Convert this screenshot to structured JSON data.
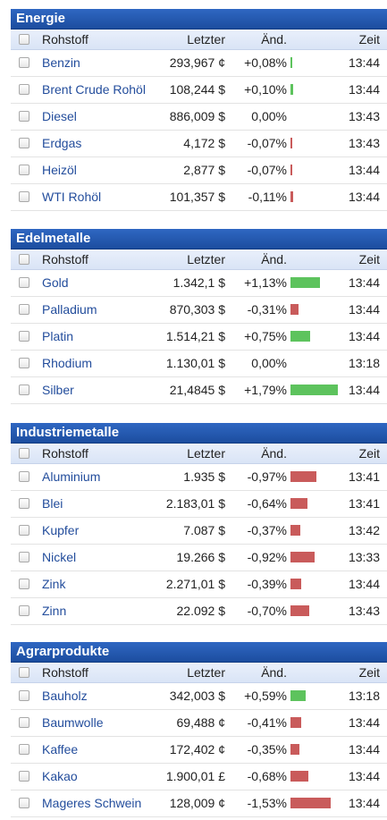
{
  "header_labels": {
    "name": "Rohstoff",
    "price": "Letzter",
    "change": "Änd.",
    "time": "Zeit"
  },
  "colors": {
    "header_blue": "#1c4d9f",
    "positive": "#5dc35d",
    "negative": "#c95b5b",
    "link": "#234d9c"
  },
  "sections": [
    {
      "title": "Energie",
      "rows": [
        {
          "name": "Benzin",
          "price": "293,967 ¢",
          "change": "+0,08%",
          "change_value": 0.08,
          "time": "13:44"
        },
        {
          "name": "Brent Crude Rohöl",
          "price": "108,244 $",
          "change": "+0,10%",
          "change_value": 0.1,
          "time": "13:44"
        },
        {
          "name": "Diesel",
          "price": "886,009 $",
          "change": "0,00%",
          "change_value": 0.0,
          "time": "13:43"
        },
        {
          "name": "Erdgas",
          "price": "4,172 $",
          "change": "-0,07%",
          "change_value": -0.07,
          "time": "13:43"
        },
        {
          "name": "Heizöl",
          "price": "2,877 $",
          "change": "-0,07%",
          "change_value": -0.07,
          "time": "13:44"
        },
        {
          "name": "WTI Rohöl",
          "price": "101,357 $",
          "change": "-0,11%",
          "change_value": -0.11,
          "time": "13:44"
        }
      ]
    },
    {
      "title": "Edelmetalle",
      "rows": [
        {
          "name": "Gold",
          "price": "1.342,1 $",
          "change": "+1,13%",
          "change_value": 1.13,
          "time": "13:44"
        },
        {
          "name": "Palladium",
          "price": "870,303 $",
          "change": "-0,31%",
          "change_value": -0.31,
          "time": "13:44"
        },
        {
          "name": "Platin",
          "price": "1.514,21 $",
          "change": "+0,75%",
          "change_value": 0.75,
          "time": "13:44"
        },
        {
          "name": "Rhodium",
          "price": "1.130,01 $",
          "change": "0,00%",
          "change_value": 0.0,
          "time": "13:18"
        },
        {
          "name": "Silber",
          "price": "21,4845 $",
          "change": "+1,79%",
          "change_value": 1.79,
          "time": "13:44"
        }
      ]
    },
    {
      "title": "Industriemetalle",
      "rows": [
        {
          "name": "Aluminium",
          "price": "1.935 $",
          "change": "-0,97%",
          "change_value": -0.97,
          "time": "13:41"
        },
        {
          "name": "Blei",
          "price": "2.183,01 $",
          "change": "-0,64%",
          "change_value": -0.64,
          "time": "13:41"
        },
        {
          "name": "Kupfer",
          "price": "7.087 $",
          "change": "-0,37%",
          "change_value": -0.37,
          "time": "13:42"
        },
        {
          "name": "Nickel",
          "price": "19.266 $",
          "change": "-0,92%",
          "change_value": -0.92,
          "time": "13:33"
        },
        {
          "name": "Zink",
          "price": "2.271,01 $",
          "change": "-0,39%",
          "change_value": -0.39,
          "time": "13:44"
        },
        {
          "name": "Zinn",
          "price": "22.092 $",
          "change": "-0,70%",
          "change_value": -0.7,
          "time": "13:43"
        }
      ]
    },
    {
      "title": "Agrarprodukte",
      "rows": [
        {
          "name": "Bauholz",
          "price": "342,003 $",
          "change": "+0,59%",
          "change_value": 0.59,
          "time": "13:18"
        },
        {
          "name": "Baumwolle",
          "price": "69,488 ¢",
          "change": "-0,41%",
          "change_value": -0.41,
          "time": "13:44"
        },
        {
          "name": "Kaffee",
          "price": "172,402 ¢",
          "change": "-0,35%",
          "change_value": -0.35,
          "time": "13:44"
        },
        {
          "name": "Kakao",
          "price": "1.900,01 £",
          "change": "-0,68%",
          "change_value": -0.68,
          "time": "13:44"
        },
        {
          "name": "Mageres Schwein",
          "price": "128,009 ¢",
          "change": "-1,53%",
          "change_value": -1.53,
          "time": "13:44"
        }
      ]
    }
  ]
}
